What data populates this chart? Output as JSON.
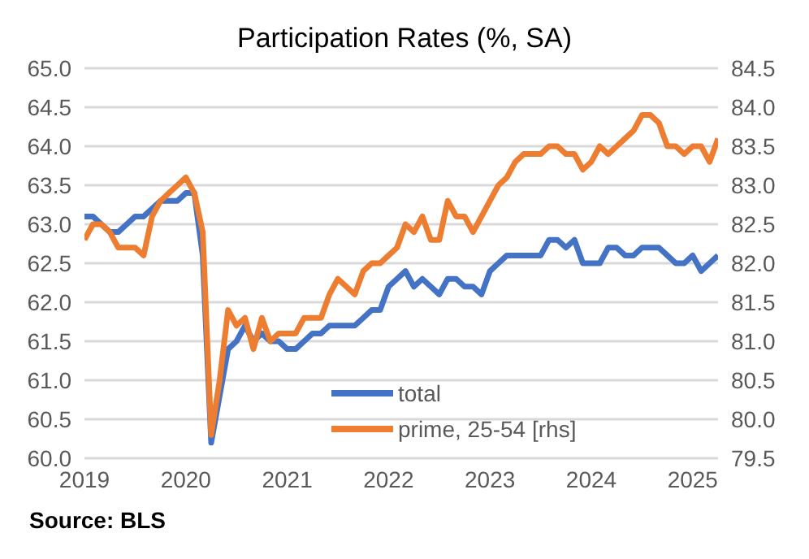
{
  "chart_data": {
    "type": "line",
    "title": "Participation Rates (%, SA)",
    "annotations": [
      "Source: BLS"
    ],
    "x": [
      "2019-01",
      "2019-02",
      "2019-03",
      "2019-04",
      "2019-05",
      "2019-06",
      "2019-07",
      "2019-08",
      "2019-09",
      "2019-10",
      "2019-11",
      "2019-12",
      "2020-01",
      "2020-02",
      "2020-03",
      "2020-04",
      "2020-05",
      "2020-06",
      "2020-07",
      "2020-08",
      "2020-09",
      "2020-10",
      "2020-11",
      "2020-12",
      "2021-01",
      "2021-02",
      "2021-03",
      "2021-04",
      "2021-05",
      "2021-06",
      "2021-07",
      "2021-08",
      "2021-09",
      "2021-10",
      "2021-11",
      "2021-12",
      "2022-01",
      "2022-02",
      "2022-03",
      "2022-04",
      "2022-05",
      "2022-06",
      "2022-07",
      "2022-08",
      "2022-09",
      "2022-10",
      "2022-11",
      "2022-12",
      "2023-01",
      "2023-02",
      "2023-03",
      "2023-04",
      "2023-05",
      "2023-06",
      "2023-07",
      "2023-08",
      "2023-09",
      "2023-10",
      "2023-11",
      "2023-12",
      "2024-01",
      "2024-02",
      "2024-03",
      "2024-04",
      "2024-05",
      "2024-06",
      "2024-07",
      "2024-08",
      "2024-09",
      "2024-10",
      "2024-11",
      "2024-12",
      "2025-01",
      "2025-02",
      "2025-03",
      "2025-04"
    ],
    "series": [
      {
        "name": "total",
        "color": "#4472c4",
        "values": [
          63.1,
          63.1,
          63.0,
          62.9,
          62.9,
          63.0,
          63.1,
          63.1,
          63.2,
          63.3,
          63.3,
          63.3,
          63.4,
          63.4,
          62.6,
          60.2,
          60.8,
          61.4,
          61.5,
          61.7,
          61.5,
          61.6,
          61.5,
          61.5,
          61.4,
          61.4,
          61.5,
          61.6,
          61.6,
          61.7,
          61.7,
          61.7,
          61.7,
          61.8,
          61.9,
          61.9,
          62.2,
          62.3,
          62.4,
          62.2,
          62.3,
          62.2,
          62.1,
          62.3,
          62.3,
          62.2,
          62.2,
          62.1,
          62.4,
          62.5,
          62.6,
          62.6,
          62.6,
          62.6,
          62.6,
          62.8,
          62.8,
          62.7,
          62.8,
          62.5,
          62.5,
          62.5,
          62.7,
          62.7,
          62.6,
          62.6,
          62.7,
          62.7,
          62.7,
          62.6,
          62.5,
          62.5,
          62.6,
          62.4,
          62.5,
          62.6
        ]
      },
      {
        "name": "prime, 25-54 [rhs]",
        "color": "#ed7d31",
        "axis": "y2",
        "values": [
          82.3,
          82.5,
          82.5,
          82.4,
          82.2,
          82.2,
          82.2,
          82.1,
          82.6,
          82.8,
          82.9,
          83.0,
          83.1,
          82.9,
          82.4,
          79.8,
          80.5,
          81.4,
          81.2,
          81.3,
          80.9,
          81.3,
          81.0,
          81.1,
          81.1,
          81.1,
          81.3,
          81.3,
          81.3,
          81.6,
          81.8,
          81.7,
          81.6,
          81.9,
          82.0,
          82.0,
          82.1,
          82.2,
          82.5,
          82.4,
          82.6,
          82.3,
          82.3,
          82.8,
          82.6,
          82.6,
          82.4,
          82.6,
          82.8,
          83.0,
          83.1,
          83.3,
          83.4,
          83.4,
          83.4,
          83.5,
          83.5,
          83.4,
          83.4,
          83.2,
          83.3,
          83.5,
          83.4,
          83.5,
          83.6,
          83.7,
          83.9,
          83.9,
          83.8,
          83.5,
          83.5,
          83.4,
          83.5,
          83.5,
          83.3,
          83.6
        ]
      }
    ],
    "xlim": [
      "2019-01",
      "2025-04"
    ],
    "xticks": [
      {
        "value": "2019-01",
        "label": "2019"
      },
      {
        "value": "2020-01",
        "label": "2020"
      },
      {
        "value": "2021-01",
        "label": "2021"
      },
      {
        "value": "2022-01",
        "label": "2022"
      },
      {
        "value": "2023-01",
        "label": "2023"
      },
      {
        "value": "2024-01",
        "label": "2024"
      },
      {
        "value": "2025-01",
        "label": "2025"
      }
    ],
    "ylim": [
      60,
      65
    ],
    "yticks": [
      {
        "value": 60,
        "label": "60.0"
      },
      {
        "value": 60.5,
        "label": "60.5"
      },
      {
        "value": 61,
        "label": "61.0"
      },
      {
        "value": 61.5,
        "label": "61.5"
      },
      {
        "value": 62,
        "label": "62.0"
      },
      {
        "value": 62.5,
        "label": "62.5"
      },
      {
        "value": 63,
        "label": "63.0"
      },
      {
        "value": 63.5,
        "label": "63.5"
      },
      {
        "value": 64,
        "label": "64.0"
      },
      {
        "value": 64.5,
        "label": "64.5"
      },
      {
        "value": 65,
        "label": "65.0"
      }
    ],
    "y2lim": [
      79.5,
      84.5
    ],
    "y2ticks": [
      {
        "value": 79.5,
        "label": "79.5"
      },
      {
        "value": 80,
        "label": "80.0"
      },
      {
        "value": 80.5,
        "label": "80.5"
      },
      {
        "value": 81,
        "label": "81.0"
      },
      {
        "value": 81.5,
        "label": "81.5"
      },
      {
        "value": 82,
        "label": "82.0"
      },
      {
        "value": 82.5,
        "label": "82.5"
      },
      {
        "value": 83,
        "label": "83.0"
      },
      {
        "value": 83.5,
        "label": "83.5"
      },
      {
        "value": 84,
        "label": "84.0"
      },
      {
        "value": 84.5,
        "label": "84.5"
      }
    ],
    "grid": "y",
    "legend": "bottom right",
    "marker": "none",
    "line_style": "solid"
  }
}
